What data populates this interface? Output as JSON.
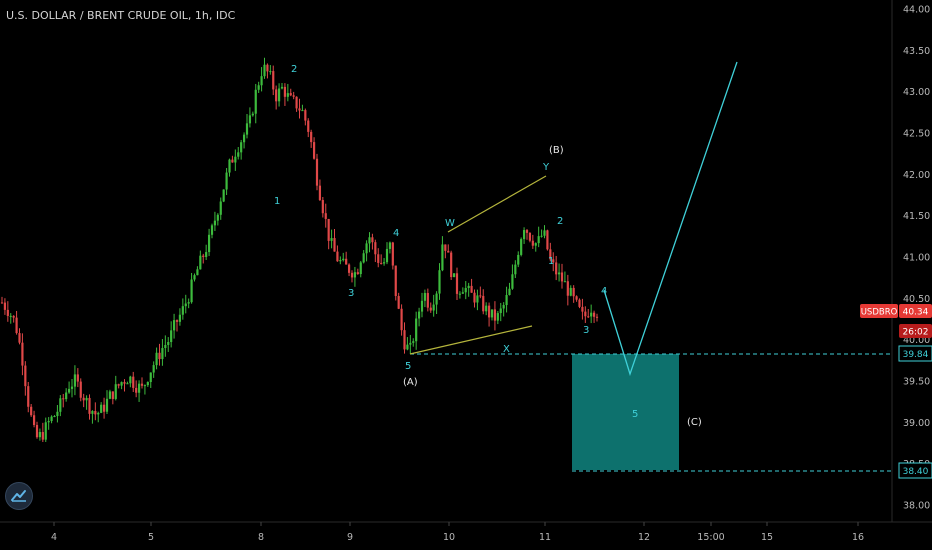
{
  "header": {
    "title": "U.S. DOLLAR / BRENT CRUDE OIL, 1h, IDC"
  },
  "colors": {
    "up": "#3dbb3d",
    "down": "#e04848",
    "wave_cyan": "#3fd0d8",
    "wave_white": "#e8e8e8",
    "channel": "#b5b53c",
    "target_fill": "#0e7d79",
    "last_price_bg": "#e53935",
    "level_line": "#3fd0d8",
    "axis_text": "#b8b8b8",
    "background": "#000000"
  },
  "price_axis": {
    "ticks": [
      "44.00",
      "43.50",
      "43.00",
      "42.50",
      "42.00",
      "41.50",
      "41.00",
      "40.50",
      "40.00",
      "39.50",
      "39.00",
      "38.50",
      "38.00"
    ]
  },
  "time_axis": {
    "ticks": [
      "4",
      "5",
      "8",
      "9",
      "10",
      "11",
      "12",
      "15:00",
      "15",
      "16"
    ]
  },
  "price_tags": {
    "symbol": "USDBRO",
    "last": "40.34",
    "countdown": "26:02",
    "upper_level": "39.84",
    "lower_level": "38.40"
  },
  "annotations": {
    "wave1": "1",
    "wave2": "2",
    "wave3": "3",
    "wave4": "4",
    "wave5": "5",
    "A": "(A)",
    "W": "W",
    "X": "X",
    "Y": "Y",
    "B": "(B)",
    "wave1b": "1",
    "wave2b": "2",
    "wave3b": "3",
    "wave4b": "4",
    "target5": "5",
    "C": "(C)"
  },
  "chart_data": {
    "type": "candlestick",
    "title": "U.S. DOLLAR / BRENT CRUDE OIL, 1h, IDC",
    "ylim": [
      37.85,
      44.05
    ],
    "x_ticks": [
      "4",
      "5",
      "8",
      "9",
      "10",
      "11",
      "12",
      "15:00",
      "15",
      "16"
    ],
    "y_ticks": [
      38.0,
      38.5,
      39.0,
      39.5,
      40.0,
      40.5,
      41.0,
      41.5,
      42.0,
      42.5,
      43.0,
      43.5,
      44.0
    ],
    "close_path": [
      40.45,
      40.35,
      40.2,
      39.8,
      39.2,
      38.8,
      38.85,
      39.0,
      39.1,
      39.25,
      39.45,
      39.5,
      39.35,
      39.2,
      39.1,
      39.15,
      39.3,
      39.4,
      39.5,
      39.55,
      39.45,
      39.4,
      39.6,
      39.75,
      39.9,
      40.0,
      40.2,
      40.35,
      40.55,
      40.8,
      41.0,
      41.2,
      41.5,
      41.8,
      42.1,
      42.3,
      42.45,
      42.6,
      43.0,
      43.3,
      43.2,
      42.95,
      43.05,
      42.9,
      42.85,
      42.75,
      42.5,
      42.0,
      41.6,
      41.2,
      41.0,
      40.9,
      40.85,
      40.8,
      41.1,
      41.25,
      41.0,
      40.9,
      41.15,
      40.5,
      40.0,
      39.85,
      40.2,
      40.6,
      40.4,
      40.6,
      41.25,
      40.9,
      40.6,
      40.65,
      40.55,
      40.5,
      40.4,
      40.3,
      40.25,
      40.4,
      40.6,
      41.0,
      41.4,
      41.25,
      41.15,
      41.3,
      40.95,
      40.8,
      40.7,
      40.55,
      40.4,
      40.25,
      40.4,
      40.34
    ],
    "projection": [
      {
        "x": "11 (end)",
        "y": 40.34
      },
      {
        "x": "12",
        "y": 39.57
      },
      {
        "x": "15:00",
        "y": 43.38
      }
    ],
    "levels": [
      39.84,
      38.4
    ],
    "target_zone": {
      "top": 39.84,
      "bottom": 38.4
    },
    "channel": {
      "upper": [
        41.28,
        41.98
      ],
      "lower": [
        39.84,
        40.18
      ]
    },
    "last_price": 40.34
  }
}
